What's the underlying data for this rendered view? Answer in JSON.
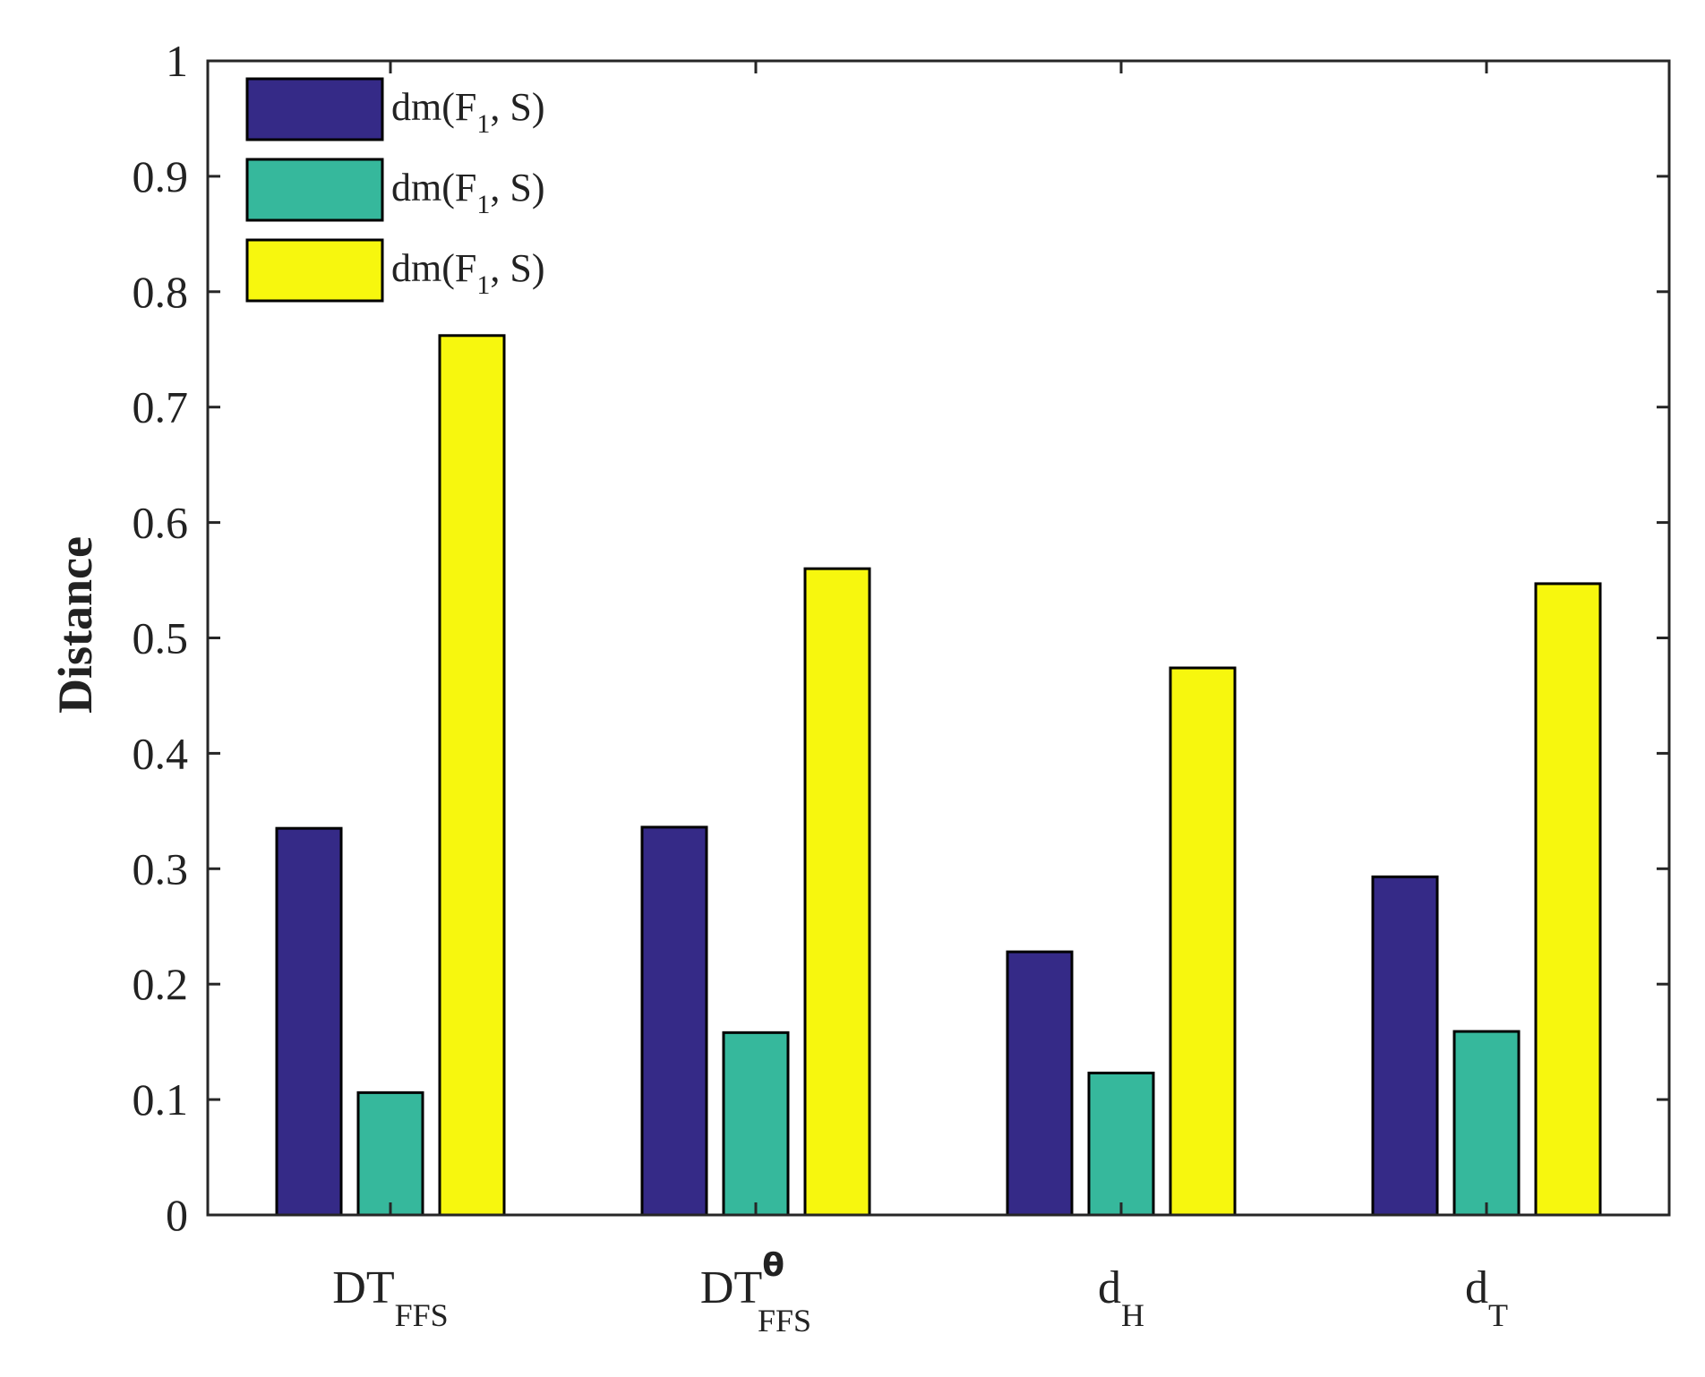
{
  "chart_data": {
    "type": "bar",
    "title": "",
    "xlabel": "",
    "ylabel": "Distance",
    "ylim": [
      0,
      1
    ],
    "yticks": [
      "0",
      "0.1",
      "0.2",
      "0.3",
      "0.4",
      "0.5",
      "0.6",
      "0.7",
      "0.8",
      "0.9",
      "1"
    ],
    "categories": [
      {
        "main": "DT",
        "sup": "",
        "sub": "FFS"
      },
      {
        "main": "DT",
        "sup": "θ",
        "sub": "FFS"
      },
      {
        "main": "d",
        "sup": "",
        "sub": "H"
      },
      {
        "main": "d",
        "sup": "",
        "sub": "T"
      }
    ],
    "series": [
      {
        "name": "dm(F1, S)",
        "label_main": "dm(F",
        "label_sub": "1",
        "label_tail": ", S)",
        "color": "#352A87",
        "values": [
          0.335,
          0.336,
          0.228,
          0.293
        ]
      },
      {
        "name": "dm(F1, S)",
        "label_main": "dm(F",
        "label_sub": "1",
        "label_tail": ", S)",
        "color": "#36B89C",
        "values": [
          0.106,
          0.158,
          0.123,
          0.159
        ]
      },
      {
        "name": "dm(F1, S)",
        "label_main": "dm(F",
        "label_sub": "1",
        "label_tail": ", S)",
        "color": "#F7F70E",
        "values": [
          0.762,
          0.56,
          0.474,
          0.547
        ]
      }
    ],
    "legend_position": "top-left",
    "grid": false
  }
}
